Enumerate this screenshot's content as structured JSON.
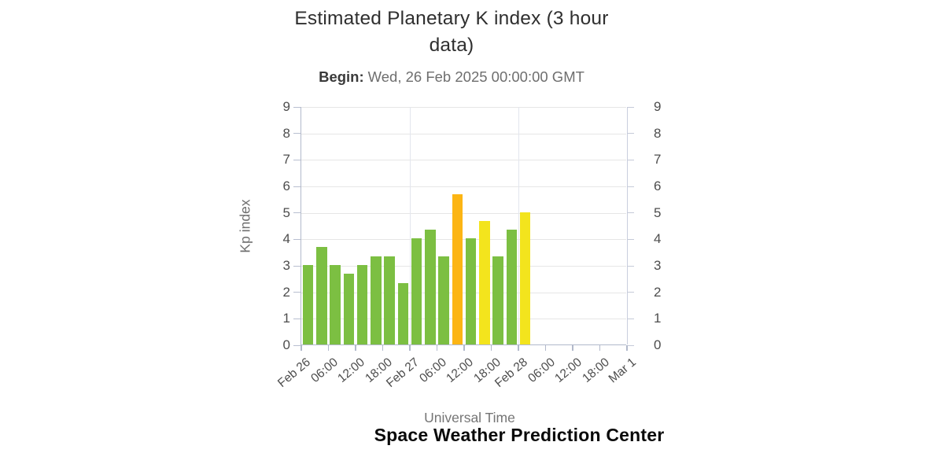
{
  "header": {
    "title_line1": "Estimated Planetary K index (3 hour",
    "title_line2": "data)",
    "begin_label": "Begin:",
    "begin_value": "Wed, 26 Feb 2025 00:00:00 GMT"
  },
  "footer": {
    "source": "Space Weather Prediction Center"
  },
  "chart_data": {
    "type": "bar",
    "title": "Estimated Planetary K index (3 hour data)",
    "begin": "Wed, 26 Feb 2025 00:00:00 GMT",
    "xlabel": "Universal Time",
    "ylabel": "Kp index",
    "ylim": [
      0,
      9
    ],
    "yticks": [
      0,
      1,
      2,
      3,
      4,
      5,
      6,
      7,
      8,
      9
    ],
    "x_tick_labels": [
      "Feb 26",
      "06:00",
      "12:00",
      "18:00",
      "Feb 27",
      "06:00",
      "12:00",
      "18:00",
      "Feb 28",
      "06:00",
      "12:00",
      "18:00",
      "Mar 1"
    ],
    "bar_hours": 3,
    "total_slots": 24,
    "day_gridline_ticks": [
      4,
      8,
      12
    ],
    "values": [
      3.0,
      3.67,
      3.0,
      2.67,
      3.0,
      3.33,
      3.33,
      2.33,
      4.0,
      4.33,
      3.33,
      5.67,
      4.0,
      4.67,
      3.33,
      4.33,
      5.0
    ],
    "bar_colors": [
      "green",
      "green",
      "green",
      "green",
      "green",
      "green",
      "green",
      "green",
      "green",
      "green",
      "green",
      "orange",
      "green",
      "yellow",
      "green",
      "green",
      "yellow"
    ],
    "palette": {
      "green": "#7cbf42",
      "yellow": "#f3e41d",
      "orange": "#fcb514"
    },
    "grid": true,
    "legend_position": "none"
  }
}
